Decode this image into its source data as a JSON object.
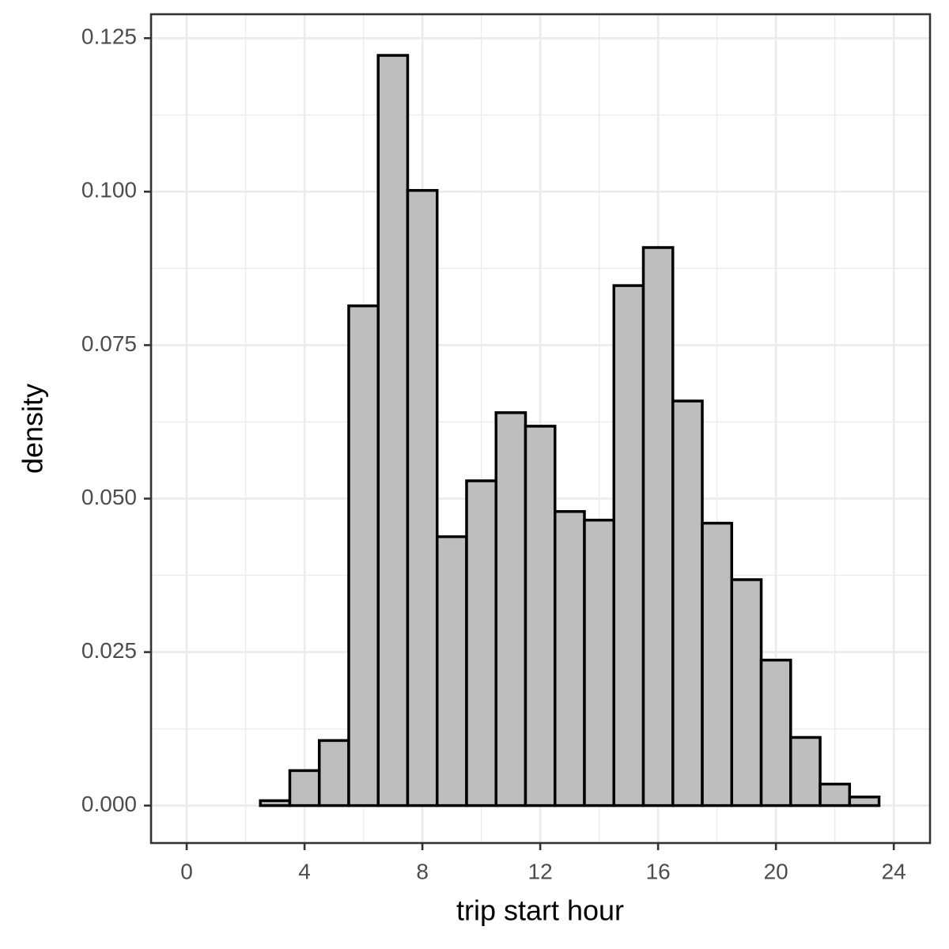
{
  "chart_data": {
    "type": "histogram",
    "x_label": "trip start hour",
    "y_label": "density",
    "bins": [
      0.5,
      1.5,
      2.5,
      3.5,
      4.5,
      5.5,
      6.5,
      7.5,
      8.5,
      9.5,
      10.5,
      11.5,
      12.5,
      13.5,
      14.5,
      15.5,
      16.5,
      17.5,
      18.5,
      19.5,
      20.5,
      21.5,
      22.5,
      23.5
    ],
    "values": [
      0,
      0,
      0.0008,
      0.0057,
      0.0106,
      0.0814,
      0.1222,
      0.1002,
      0.0438,
      0.0529,
      0.064,
      0.0618,
      0.0479,
      0.0465,
      0.0847,
      0.0909,
      0.0659,
      0.046,
      0.0368,
      0.0237,
      0.0111,
      0.0035,
      0.0014
    ],
    "color": "#bebebe",
    "edge_color": "#000000",
    "xlim": [
      -1.21,
      25.23
    ],
    "ylim": [
      -0.0061,
      0.1289
    ],
    "xticks": [
      0,
      4,
      8,
      12,
      16,
      20,
      24
    ],
    "yticks": [
      {
        "value": 0,
        "label": "0.000"
      },
      {
        "value": 0.025,
        "label": "0.025"
      },
      {
        "value": 0.05,
        "label": "0.050"
      },
      {
        "value": 0.075,
        "label": "0.075"
      },
      {
        "value": 0.1,
        "label": "0.100"
      },
      {
        "value": 0.125,
        "label": "0.125"
      }
    ],
    "grid": true
  }
}
